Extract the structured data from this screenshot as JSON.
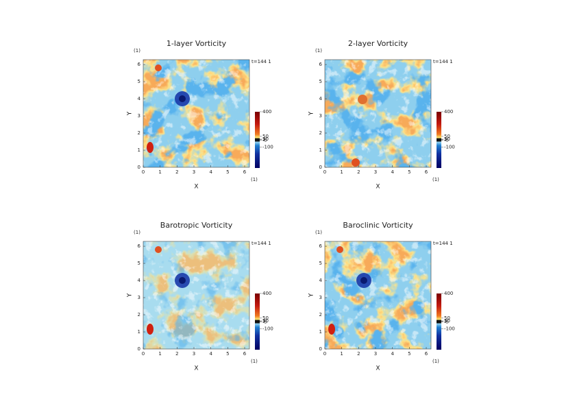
{
  "chart_data": [
    {
      "type": "heatmap",
      "title": "1-layer Vorticity",
      "x_label": "X",
      "y_label": "Y",
      "x_unit_label": "(1)",
      "y_unit_label": "(1)",
      "annotation": "t=144 1",
      "xlim": [
        0,
        6.283
      ],
      "ylim": [
        0,
        6.283
      ],
      "xticks": [
        0,
        1,
        2,
        3,
        4,
        5,
        6
      ],
      "yticks": [
        0,
        1,
        2,
        3,
        4,
        5,
        6
      ],
      "colorbar": {
        "lim": [
          -400,
          400
        ],
        "ticks": [
          400,
          50,
          10,
          5,
          -5,
          -100
        ]
      }
    },
    {
      "type": "heatmap",
      "title": "2-layer Vorticity",
      "x_label": "X",
      "y_label": "Y",
      "x_unit_label": "(1)",
      "y_unit_label": "(1)",
      "annotation": "t=144 1",
      "xlim": [
        0,
        6.283
      ],
      "ylim": [
        0,
        6.283
      ],
      "xticks": [
        0,
        1,
        2,
        3,
        4,
        5,
        6
      ],
      "yticks": [
        0,
        1,
        2,
        3,
        4,
        5,
        6
      ],
      "colorbar": {
        "lim": [
          -400,
          400
        ],
        "ticks": [
          400,
          50,
          10,
          5,
          -5,
          -100
        ]
      }
    },
    {
      "type": "heatmap",
      "title": "Barotropic Vorticity",
      "x_label": "X",
      "y_label": "Y",
      "x_unit_label": "(1)",
      "y_unit_label": "(1)",
      "annotation": "t=144 1",
      "xlim": [
        0,
        6.283
      ],
      "ylim": [
        0,
        6.283
      ],
      "xticks": [
        0,
        1,
        2,
        3,
        4,
        5,
        6
      ],
      "yticks": [
        0,
        1,
        2,
        3,
        4,
        5,
        6
      ],
      "colorbar": {
        "lim": [
          -400,
          400
        ],
        "ticks": [
          400,
          50,
          10,
          5,
          -5,
          -100
        ]
      }
    },
    {
      "type": "heatmap",
      "title": "Baroclinic Vorticity",
      "x_label": "X",
      "y_label": "Y",
      "x_unit_label": "(1)",
      "y_unit_label": "(1)",
      "annotation": "t=144 1",
      "xlim": [
        0,
        6.283
      ],
      "ylim": [
        0,
        6.283
      ],
      "xticks": [
        0,
        1,
        2,
        3,
        4,
        5,
        6
      ],
      "yticks": [
        0,
        1,
        2,
        3,
        4,
        5,
        6
      ],
      "colorbar": {
        "lim": [
          -400,
          400
        ],
        "ticks": [
          400,
          50,
          10,
          5,
          -5,
          -100
        ]
      }
    }
  ]
}
